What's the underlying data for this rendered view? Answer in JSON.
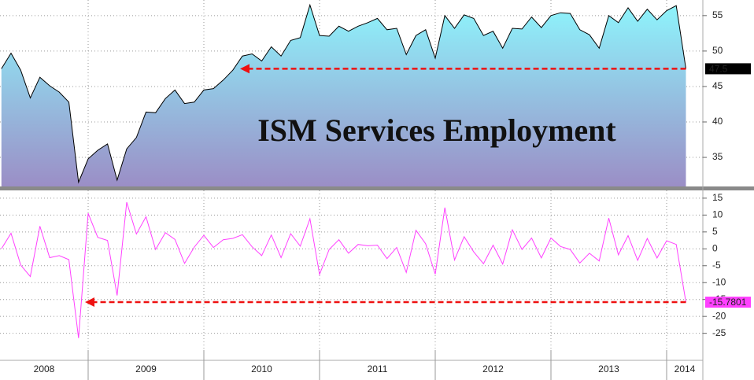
{
  "chart_data": [
    {
      "type": "area",
      "title": "ISM Services Employment",
      "color": "#000000",
      "x": [
        2008.25,
        2008.333,
        2008.417,
        2008.5,
        2008.583,
        2008.667,
        2008.75,
        2008.833,
        2008.917,
        2009,
        2009.083,
        2009.167,
        2009.25,
        2009.333,
        2009.417,
        2009.5,
        2009.583,
        2009.667,
        2009.75,
        2009.833,
        2009.917,
        2010,
        2010.083,
        2010.167,
        2010.25,
        2010.333,
        2010.417,
        2010.5,
        2010.583,
        2010.667,
        2010.75,
        2010.833,
        2010.917,
        2011,
        2011.083,
        2011.167,
        2011.25,
        2011.333,
        2011.417,
        2011.5,
        2011.583,
        2011.667,
        2011.75,
        2011.833,
        2011.917,
        2012,
        2012.083,
        2012.167,
        2012.25,
        2012.333,
        2012.417,
        2012.5,
        2012.583,
        2012.667,
        2012.75,
        2012.833,
        2012.917,
        2013,
        2013.083,
        2013.167,
        2013.25,
        2013.333,
        2013.417,
        2013.5,
        2013.583,
        2013.667,
        2013.75,
        2013.833,
        2013.917,
        2014,
        2014.083,
        2014.167
      ],
      "values": [
        47.5,
        49.7,
        47.3,
        43.4,
        46.3,
        45.1,
        44.2,
        42.8,
        31.5,
        34.8,
        36.0,
        36.9,
        31.8,
        36.2,
        37.8,
        41.4,
        41.3,
        43.3,
        44.5,
        42.6,
        42.8,
        44.5,
        44.7,
        45.9,
        47.3,
        49.3,
        49.6,
        48.6,
        50.6,
        49.3,
        51.5,
        51.9,
        56.5,
        52.2,
        52.1,
        53.5,
        52.8,
        53.5,
        54.0,
        54.6,
        53.0,
        53.2,
        49.5,
        52.2,
        53.0,
        49.0,
        55.0,
        53.2,
        55.1,
        54.6,
        52.2,
        52.8,
        50.4,
        53.2,
        53.1,
        54.8,
        53.3,
        55.0,
        55.4,
        55.3,
        53.0,
        52.3,
        50.4,
        55.0,
        54.0,
        56.1,
        54.2,
        55.9,
        54.4,
        55.7,
        56.4,
        47.5
      ],
      "xlim": [
        2008.238,
        2014.313
      ],
      "xticks": [
        2009,
        2010,
        2011,
        2012,
        2013,
        2014
      ],
      "ylim": [
        30.9,
        57.2
      ],
      "yticks": [
        35,
        40,
        45,
        50,
        55
      ],
      "grid": true
    },
    {
      "type": "line",
      "color": "#ff40ff",
      "x": [
        2008.25,
        2008.333,
        2008.417,
        2008.5,
        2008.583,
        2008.667,
        2008.75,
        2008.833,
        2008.917,
        2009,
        2009.083,
        2009.167,
        2009.25,
        2009.333,
        2009.417,
        2009.5,
        2009.583,
        2009.667,
        2009.75,
        2009.833,
        2009.917,
        2010,
        2010.083,
        2010.167,
        2010.25,
        2010.333,
        2010.417,
        2010.5,
        2010.583,
        2010.667,
        2010.75,
        2010.833,
        2010.917,
        2011,
        2011.083,
        2011.167,
        2011.25,
        2011.333,
        2011.417,
        2011.5,
        2011.583,
        2011.667,
        2011.75,
        2011.833,
        2011.917,
        2012,
        2012.083,
        2012.167,
        2012.25,
        2012.333,
        2012.417,
        2012.5,
        2012.583,
        2012.667,
        2012.75,
        2012.833,
        2012.917,
        2013,
        2013.083,
        2013.167,
        2013.25,
        2013.333,
        2013.417,
        2013.5,
        2013.583,
        2013.667,
        2013.75,
        2013.833,
        2013.917,
        2014,
        2014.083,
        2014.167
      ],
      "values": [
        0,
        4.6,
        -4.8,
        -8.2,
        6.7,
        -2.6,
        -2.0,
        -3.2,
        -26.4,
        10.5,
        3.4,
        2.5,
        -13.8,
        13.8,
        4.4,
        9.5,
        -0.2,
        4.8,
        2.8,
        -4.3,
        0.5,
        4.0,
        0.4,
        2.7,
        3.1,
        4.2,
        0.6,
        -2.0,
        4.1,
        -2.6,
        4.5,
        0.8,
        8.9,
        -7.6,
        -0.2,
        2.7,
        -1.3,
        1.3,
        0.9,
        1.1,
        -2.9,
        0.4,
        -7.0,
        5.5,
        1.5,
        -7.5,
        12.2,
        -3.3,
        3.6,
        -0.9,
        -4.4,
        1.1,
        -4.5,
        5.6,
        -0.2,
        3.2,
        -2.7,
        3.2,
        0.7,
        -0.2,
        -4.2,
        -1.3,
        -3.6,
        9.1,
        -1.8,
        3.9,
        -3.4,
        3.1,
        -2.7,
        2.4,
        1.3,
        -15.7801
      ],
      "xlim": [
        2008.238,
        2014.313
      ],
      "xticks": [
        2009,
        2010,
        2011,
        2012,
        2013,
        2014
      ],
      "x_labels": [
        "2008",
        "2009",
        "2010",
        "2011",
        "2012",
        "2013",
        "2014"
      ],
      "ylim": [
        -33,
        17.3
      ],
      "yticks": [
        -25,
        -20,
        -15,
        -10,
        -5,
        0,
        5,
        10,
        15
      ],
      "grid": true
    }
  ]
}
